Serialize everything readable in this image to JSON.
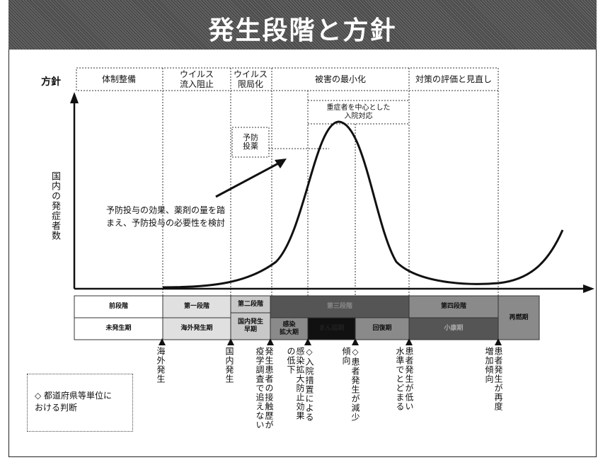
{
  "title": "発生段階と方針",
  "policy": {
    "label": "方針",
    "cells": [
      "体制整備",
      "ウイルス\n流入阻止",
      "ウイルス\n限局化",
      "被害の最小化",
      "対策の評価と見直し"
    ]
  },
  "y_axis_label": "国内の発症者数",
  "annotations": {
    "hospital": "重症者を中心とした\n入院対応",
    "prophylaxis": "予防\n投薬",
    "note": "予防投与の効果、薬剤の量を踏\nまえ、予防投与の必要性を検討"
  },
  "stages": {
    "pre": {
      "top": "前段階",
      "bottom": "未発生期"
    },
    "first": {
      "top": "第一段階",
      "bottom": "海外発生期"
    },
    "second": {
      "top": "第二段階",
      "bottom": "国内発生\n早期"
    },
    "third": {
      "top": "第三段階",
      "sub1": "感染\n拡大期",
      "sub2": "まん延期",
      "sub3": "回復期"
    },
    "fourth": {
      "top": "第四段階",
      "bottom": "小康期"
    },
    "next": "再燃期"
  },
  "events": [
    "海外発生",
    "国内発生",
    "発生患者の接触歴が\n疫学調査で追えない",
    "◇入院措置による\n感染拡大防止効果\nの低下",
    "◇患者発生が減少\n傾向",
    "患者発生が低い\n水準でとどまる",
    "患者発生が再度\n増加傾向"
  ],
  "legend": "◇ 都道府県等単位に\nおける判断",
  "colors": {
    "title_bg": "#555555",
    "stage_dark": "#555555",
    "stage_mid": "#8a8a8a",
    "stage_light": "#c8c8c8",
    "stage_black": "#111111"
  }
}
